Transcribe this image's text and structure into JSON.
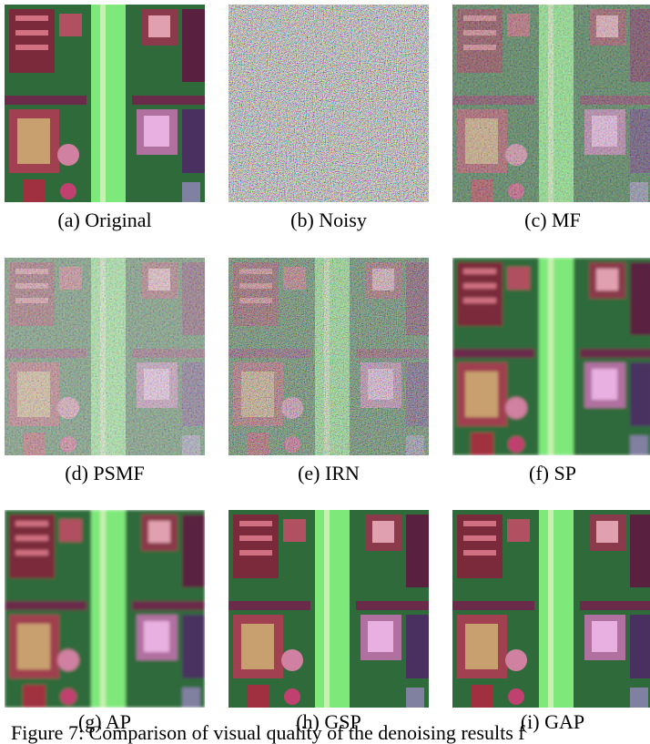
{
  "panels": [
    {
      "label": "(a) Original"
    },
    {
      "label": "(b) Noisy"
    },
    {
      "label": "(c) MF"
    },
    {
      "label": "(d) PSMF"
    },
    {
      "label": "(e) IRN"
    },
    {
      "label": "(f) SP"
    },
    {
      "label": "(g) AP"
    },
    {
      "label": "(h) GSP"
    },
    {
      "label": "(i) GAP"
    }
  ],
  "caption": "Figure 7: Comparison of visual quality of the denoising results f"
}
